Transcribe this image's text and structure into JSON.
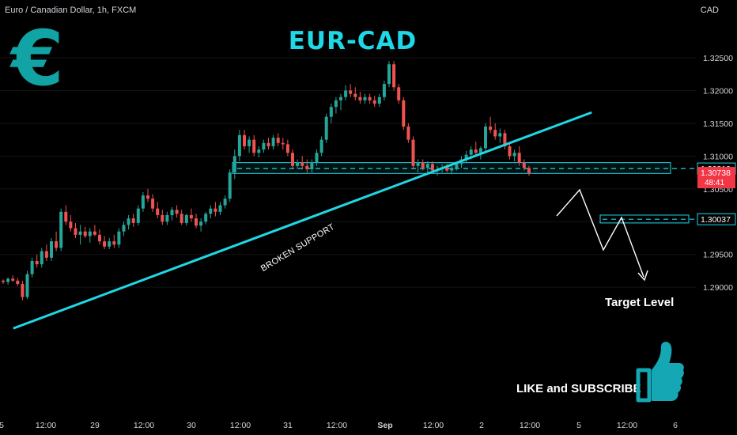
{
  "header": {
    "symbol_title": "Euro / Canadian Dollar, 1h, FXCM",
    "currency": "CAD"
  },
  "annotations": {
    "title": "EUR-CAD",
    "euro_symbol": "€",
    "broken_support": "BROKEN SUPPORT",
    "target_level": "Target Level",
    "cta": "LIKE and SUBSCRIBE"
  },
  "price_axis": {
    "ticks": [
      "1.32500",
      "1.32000",
      "1.31500",
      "1.31000",
      "1.30500",
      "1.30000",
      "1.29500",
      "1.29000"
    ],
    "level_label": "1.30810",
    "last_price": "1.30738",
    "countdown": "48:41",
    "target_label": "1.30037"
  },
  "time_axis": {
    "labels": [
      "5",
      "12:00",
      "29",
      "12:00",
      "30",
      "12:00",
      "31",
      "12:00",
      "Sep",
      "12:00",
      "2",
      "12:00",
      "5",
      "12:00",
      "6"
    ]
  },
  "chart_data": {
    "type": "candlestick",
    "title": "EUR-CAD",
    "ylabel": "CAD",
    "ylim": [
      1.2875,
      1.3275
    ],
    "x_range": [
      "Aug 28 03:00",
      "Sep 6 12:00"
    ],
    "colors": {
      "up": "#26a69a",
      "down": "#ef5350",
      "accent": "#1fd8e6",
      "annotation": "#ffffff"
    },
    "resistance_zone": [
      1.30735,
      1.309
    ],
    "resistance_level": 1.3081,
    "target_zone": [
      1.2998,
      1.301
    ],
    "target_level": 1.30037,
    "last_price": 1.30738,
    "trendline_broken_support": [
      [
        0,
        1.288
      ],
      [
        136,
        1.3195
      ]
    ],
    "projected_path": [
      [
        130,
        1.3074
      ],
      [
        135,
        1.311
      ],
      [
        140,
        1.305
      ],
      [
        145,
        1.3087
      ],
      [
        152,
        1.3013
      ]
    ],
    "candles": [
      [
        1.291,
        1.2912,
        1.2905,
        1.2908
      ],
      [
        1.2908,
        1.2915,
        1.2904,
        1.2913
      ],
      [
        1.2913,
        1.2918,
        1.2908,
        1.291
      ],
      [
        1.291,
        1.2914,
        1.2902,
        1.2905
      ],
      [
        1.2905,
        1.291,
        1.288,
        1.2885
      ],
      [
        1.2885,
        1.2925,
        1.2882,
        1.292
      ],
      [
        1.292,
        1.2945,
        1.2915,
        1.294
      ],
      [
        1.294,
        1.295,
        1.293,
        1.2935
      ],
      [
        1.2935,
        1.296,
        1.293,
        1.2955
      ],
      [
        1.2955,
        1.2965,
        1.294,
        1.2945
      ],
      [
        1.2945,
        1.2975,
        1.294,
        1.297
      ],
      [
        1.297,
        1.2985,
        1.2955,
        1.296
      ],
      [
        1.296,
        1.302,
        1.2955,
        1.3015
      ],
      [
        1.3015,
        1.3025,
        1.2995,
        1.3
      ],
      [
        1.3,
        1.301,
        1.2985,
        1.299
      ],
      [
        1.299,
        1.2998,
        1.2975,
        1.298
      ],
      [
        1.298,
        1.2995,
        1.2965,
        1.2985
      ],
      [
        1.2985,
        1.2992,
        1.2975,
        1.2978
      ],
      [
        1.2978,
        1.299,
        1.2968,
        1.2985
      ],
      [
        1.2985,
        1.2995,
        1.2978,
        1.298
      ],
      [
        1.298,
        1.2988,
        1.2965,
        1.297
      ],
      [
        1.297,
        1.2978,
        1.2958,
        1.2962
      ],
      [
        1.2962,
        1.2975,
        1.2958,
        1.297
      ],
      [
        1.297,
        1.298,
        1.296,
        1.2965
      ],
      [
        1.2965,
        1.299,
        1.296,
        1.2985
      ],
      [
        1.2985,
        1.3,
        1.2978,
        1.2995
      ],
      [
        1.2995,
        1.301,
        1.2988,
        1.3005
      ],
      [
        1.3005,
        1.3012,
        1.2992,
        1.2998
      ],
      [
        1.2998,
        1.3025,
        1.2994,
        1.302
      ],
      [
        1.302,
        1.3045,
        1.3015,
        1.304
      ],
      [
        1.304,
        1.305,
        1.303,
        1.3035
      ],
      [
        1.3035,
        1.3042,
        1.3015,
        1.302
      ],
      [
        1.302,
        1.303,
        1.3005,
        1.301
      ],
      [
        1.301,
        1.3018,
        1.2995,
        1.3
      ],
      [
        1.3,
        1.3015,
        1.2995,
        1.301
      ],
      [
        1.301,
        1.3022,
        1.3002,
        1.3018
      ],
      [
        1.3018,
        1.3025,
        1.3006,
        1.3012
      ],
      [
        1.3012,
        1.3018,
        1.2995,
        1.2998
      ],
      [
        1.2998,
        1.3012,
        1.2994,
        1.301
      ],
      [
        1.301,
        1.302,
        1.3,
        1.3005
      ],
      [
        1.3005,
        1.3012,
        1.299,
        1.2994
      ],
      [
        1.2994,
        1.3005,
        1.2985,
        1.3
      ],
      [
        1.3,
        1.3015,
        1.2996,
        1.3012
      ],
      [
        1.3012,
        1.3025,
        1.3005,
        1.302
      ],
      [
        1.302,
        1.303,
        1.3008,
        1.3015
      ],
      [
        1.3015,
        1.303,
        1.301,
        1.3025
      ],
      [
        1.3025,
        1.304,
        1.302,
        1.3035
      ],
      [
        1.3035,
        1.308,
        1.303,
        1.3075
      ],
      [
        1.3075,
        1.311,
        1.3065,
        1.31
      ],
      [
        1.31,
        1.314,
        1.3092,
        1.3132
      ],
      [
        1.3132,
        1.314,
        1.311,
        1.3115
      ],
      [
        1.3115,
        1.313,
        1.3105,
        1.3125
      ],
      [
        1.3125,
        1.3132,
        1.31,
        1.3105
      ],
      [
        1.3105,
        1.3115,
        1.3098,
        1.311
      ],
      [
        1.311,
        1.3125,
        1.3105,
        1.312
      ],
      [
        1.312,
        1.3128,
        1.311,
        1.3115
      ],
      [
        1.3115,
        1.3132,
        1.311,
        1.3128
      ],
      [
        1.3128,
        1.3135,
        1.3115,
        1.312
      ],
      [
        1.312,
        1.3128,
        1.311,
        1.3118
      ],
      [
        1.3118,
        1.3125,
        1.31,
        1.3105
      ],
      [
        1.3105,
        1.311,
        1.308,
        1.3085
      ],
      [
        1.3085,
        1.3095,
        1.308,
        1.309
      ],
      [
        1.309,
        1.31,
        1.308,
        1.3085
      ],
      [
        1.3085,
        1.3095,
        1.3075,
        1.308
      ],
      [
        1.308,
        1.3095,
        1.3075,
        1.309
      ],
      [
        1.309,
        1.311,
        1.3085,
        1.3105
      ],
      [
        1.3105,
        1.313,
        1.31,
        1.3125
      ],
      [
        1.3125,
        1.3165,
        1.312,
        1.316
      ],
      [
        1.316,
        1.318,
        1.315,
        1.3175
      ],
      [
        1.3175,
        1.319,
        1.3165,
        1.3185
      ],
      [
        1.3185,
        1.3195,
        1.317,
        1.319
      ],
      [
        1.319,
        1.3208,
        1.3185,
        1.32
      ],
      [
        1.32,
        1.321,
        1.319,
        1.3195
      ],
      [
        1.3195,
        1.3205,
        1.3185,
        1.319
      ],
      [
        1.319,
        1.3198,
        1.318,
        1.3185
      ],
      [
        1.3185,
        1.3195,
        1.318,
        1.319
      ],
      [
        1.319,
        1.3195,
        1.318,
        1.3185
      ],
      [
        1.3185,
        1.3192,
        1.3175,
        1.318
      ],
      [
        1.318,
        1.3195,
        1.3175,
        1.319
      ],
      [
        1.319,
        1.3215,
        1.3185,
        1.321
      ],
      [
        1.321,
        1.3245,
        1.3205,
        1.324
      ],
      [
        1.324,
        1.3245,
        1.32,
        1.3205
      ],
      [
        1.3205,
        1.321,
        1.318,
        1.3185
      ],
      [
        1.3185,
        1.319,
        1.314,
        1.3145
      ],
      [
        1.3145,
        1.315,
        1.312,
        1.3125
      ],
      [
        1.3125,
        1.313,
        1.308,
        1.3085
      ],
      [
        1.3085,
        1.3095,
        1.3075,
        1.309
      ],
      [
        1.309,
        1.3095,
        1.3078,
        1.3082
      ],
      [
        1.3082,
        1.3092,
        1.3075,
        1.3088
      ],
      [
        1.3088,
        1.3092,
        1.3075,
        1.3078
      ],
      [
        1.3078,
        1.3085,
        1.307,
        1.308
      ],
      [
        1.308,
        1.3088,
        1.3075,
        1.3083
      ],
      [
        1.3083,
        1.3088,
        1.3075,
        1.3078
      ],
      [
        1.3078,
        1.3085,
        1.3072,
        1.3082
      ],
      [
        1.3082,
        1.309,
        1.3078,
        1.3088
      ],
      [
        1.3088,
        1.31,
        1.3082,
        1.3095
      ],
      [
        1.3095,
        1.3108,
        1.309,
        1.3102
      ],
      [
        1.3102,
        1.3115,
        1.3095,
        1.311
      ],
      [
        1.311,
        1.3122,
        1.31,
        1.3105
      ],
      [
        1.3105,
        1.3115,
        1.3095,
        1.3112
      ],
      [
        1.3112,
        1.315,
        1.3105,
        1.3145
      ],
      [
        1.3145,
        1.316,
        1.3135,
        1.314
      ],
      [
        1.314,
        1.315,
        1.3125,
        1.313
      ],
      [
        1.313,
        1.3142,
        1.312,
        1.3135
      ],
      [
        1.3135,
        1.314,
        1.311,
        1.3115
      ],
      [
        1.3115,
        1.312,
        1.3095,
        1.31
      ],
      [
        1.31,
        1.311,
        1.3092,
        1.3105
      ],
      [
        1.3105,
        1.3115,
        1.3085,
        1.309
      ],
      [
        1.309,
        1.3095,
        1.3078,
        1.3082
      ],
      [
        1.3082,
        1.3085,
        1.307,
        1.3074
      ]
    ]
  }
}
